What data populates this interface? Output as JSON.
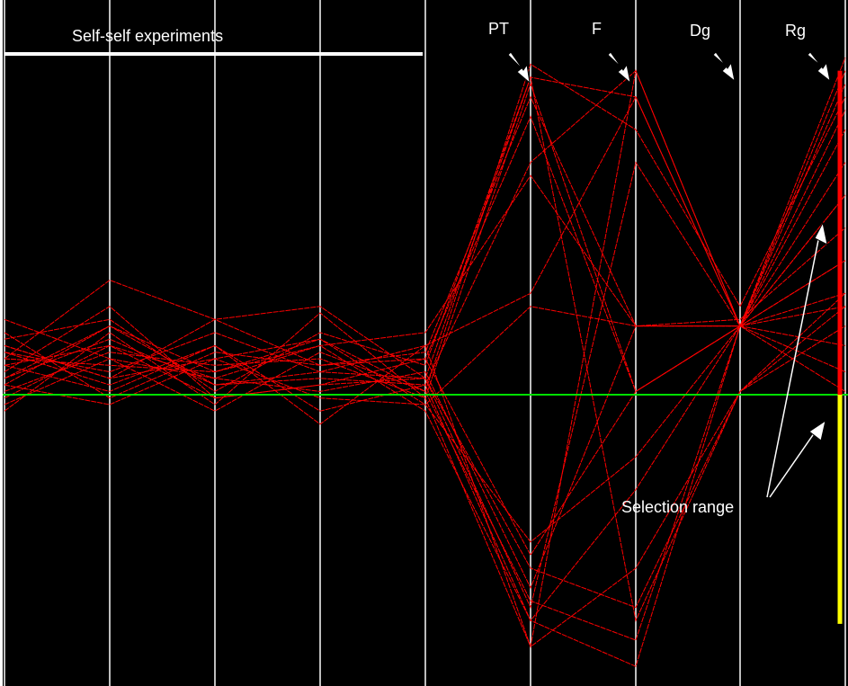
{
  "chart_data": {
    "type": "parallel-coordinates",
    "axes_count": 9,
    "normalized_range": [
      0,
      1
    ],
    "groups": [
      {
        "label": "Self-self experiments",
        "axes": [
          1,
          2,
          3,
          4
        ]
      }
    ],
    "axis_labels": [
      "",
      "",
      "",
      "",
      "",
      "PT",
      "F",
      "Dg",
      "Rg"
    ],
    "reference_line": {
      "value": 0.445,
      "color": "#00e000"
    },
    "selection": {
      "label": "Selection range",
      "axis_index": 8,
      "selected_range": [
        0.445,
        0.94
      ],
      "unselected_range": [
        0.095,
        0.445
      ],
      "selected_color": "#ff0000",
      "unselected_color": "#ffff00"
    },
    "series_color": "#ff0000",
    "series": [
      {
        "values": [
          0.5,
          0.62,
          0.56,
          0.58,
          0.47,
          0.93,
          0.9,
          0.55,
          0.94
        ]
      },
      {
        "values": [
          0.47,
          0.55,
          0.48,
          0.53,
          0.45,
          0.95,
          0.85,
          0.58,
          0.9
        ]
      },
      {
        "values": [
          0.52,
          0.47,
          0.56,
          0.49,
          0.51,
          0.9,
          0.55,
          0.55,
          0.85
        ]
      },
      {
        "values": [
          0.44,
          0.52,
          0.44,
          0.46,
          0.5,
          0.87,
          0.45,
          0.55,
          0.8
        ]
      },
      {
        "values": [
          0.49,
          0.45,
          0.52,
          0.42,
          0.46,
          0.8,
          0.94,
          0.55,
          0.75
        ]
      },
      {
        "values": [
          0.56,
          0.5,
          0.47,
          0.52,
          0.54,
          0.78,
          0.55,
          0.56,
          0.7
        ]
      },
      {
        "values": [
          0.42,
          0.54,
          0.43,
          0.57,
          0.44,
          0.92,
          0.45,
          0.55,
          0.65
        ]
      },
      {
        "values": [
          0.51,
          0.48,
          0.54,
          0.48,
          0.52,
          0.6,
          0.9,
          0.55,
          0.6
        ]
      },
      {
        "values": [
          0.46,
          0.43,
          0.5,
          0.44,
          0.43,
          0.58,
          0.55,
          0.55,
          0.58
        ]
      },
      {
        "values": [
          0.53,
          0.56,
          0.45,
          0.54,
          0.49,
          0.93,
          0.1,
          0.45,
          0.55
        ]
      },
      {
        "values": [
          0.45,
          0.51,
          0.49,
          0.5,
          0.44,
          0.06,
          0.94,
          0.55,
          0.92
        ]
      },
      {
        "values": [
          0.48,
          0.58,
          0.44,
          0.46,
          0.47,
          0.12,
          0.8,
          0.55,
          0.88
        ]
      },
      {
        "values": [
          0.51,
          0.46,
          0.52,
          0.4,
          0.52,
          0.06,
          0.18,
          0.45,
          0.6
        ]
      },
      {
        "values": [
          0.5,
          0.49,
          0.48,
          0.52,
          0.42,
          0.1,
          0.3,
          0.55,
          0.52
        ]
      },
      {
        "values": [
          0.47,
          0.53,
          0.46,
          0.47,
          0.46,
          0.1,
          0.03,
          0.55,
          0.96
        ]
      },
      {
        "values": [
          0.54,
          0.44,
          0.51,
          0.49,
          0.5,
          0.2,
          0.45,
          0.55,
          0.75
        ]
      },
      {
        "values": [
          0.43,
          0.5,
          0.42,
          0.51,
          0.45,
          0.13,
          0.07,
          0.55,
          0.48
        ]
      },
      {
        "values": [
          0.49,
          0.52,
          0.47,
          0.45,
          0.48,
          0.15,
          0.55,
          0.55,
          0.45
        ]
      },
      {
        "values": [
          0.52,
          0.47,
          0.5,
          0.53,
          0.43,
          0.22,
          0.35,
          0.55,
          0.65
        ]
      },
      {
        "values": [
          0.46,
          0.55,
          0.46,
          0.48,
          0.47,
          0.18,
          0.12,
          0.45,
          0.58
        ]
      }
    ]
  },
  "labels": {
    "group_label": "Self-self experiments",
    "axis_pt": "PT",
    "axis_f": "F",
    "axis_dg": "Dg",
    "axis_rg": "Rg",
    "selection_label": "Selection range"
  }
}
